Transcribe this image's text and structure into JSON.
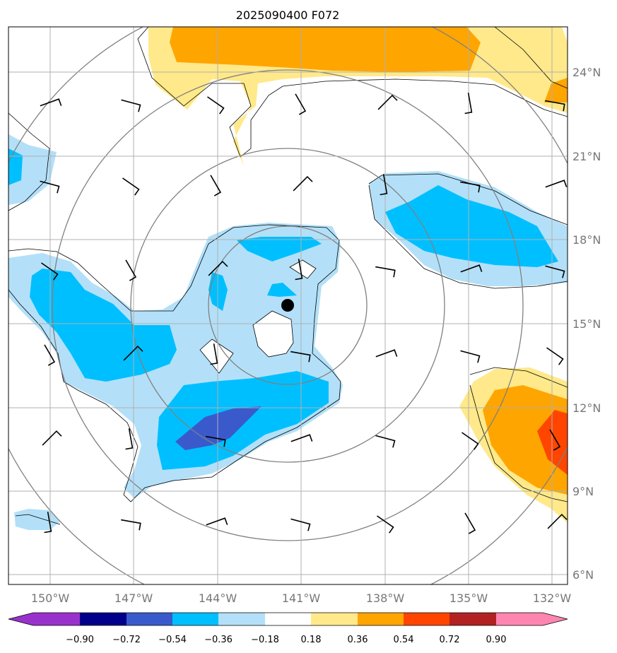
{
  "title": "2025090400 F072",
  "colors": {
    "light_blue": "#b3e0f8",
    "cyan": "#00bfff",
    "royal_blue": "#3a5acc",
    "navy": "#00008b",
    "purple": "#9932cc",
    "yellow": "#ffe98a",
    "orange": "#ffa500",
    "red_orange": "#ff4500",
    "firebrick": "#b22222",
    "pink": "#ff85b1"
  },
  "map": {
    "lon_labels": [
      "150°W",
      "147°W",
      "144°W",
      "141°W",
      "138°W",
      "135°W",
      "132°W"
    ],
    "lat_labels": [
      "24°N",
      "21°N",
      "18°N",
      "15°N",
      "12°N",
      "9°N",
      "6°N"
    ],
    "storm_center_marker": "black-dot"
  },
  "colorbar": {
    "labels": [
      "−0.90",
      "−0.72",
      "−0.54",
      "−0.36",
      "−0.18",
      "0.18",
      "0.36",
      "0.54",
      "0.72",
      "0.90"
    ],
    "extend": "both"
  }
}
